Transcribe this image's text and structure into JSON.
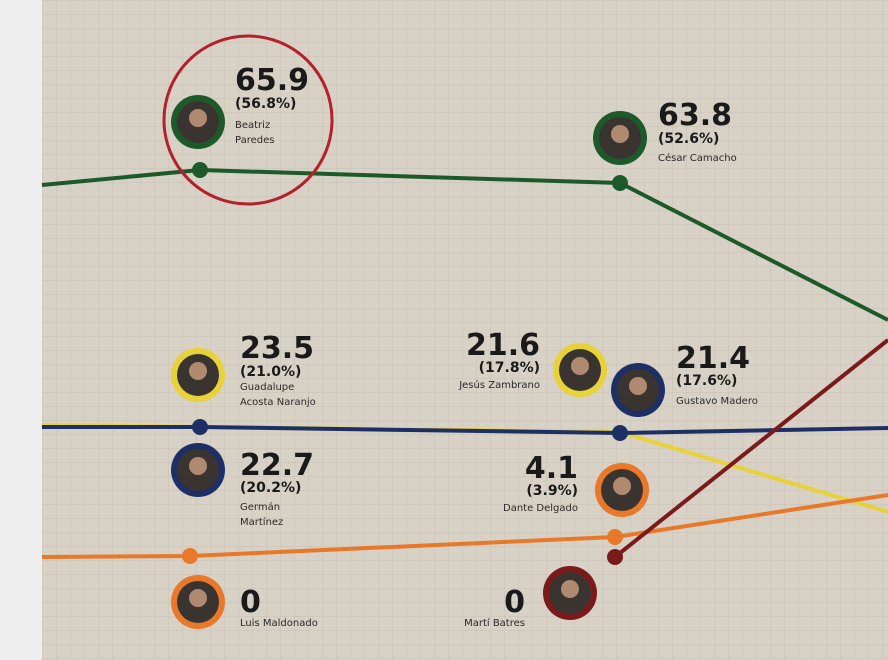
{
  "candidates": [
    {
      "value": "65.9",
      "percent": "(56.8%)",
      "name": [
        "Beatriz",
        "Paredes"
      ]
    },
    {
      "value": "63.8",
      "percent": "(52.6%)",
      "name": [
        "César Camacho"
      ]
    },
    {
      "value": "23.5",
      "percent": "(21.0%)",
      "name": [
        "Guadalupe",
        "Acosta Naranjo"
      ]
    },
    {
      "value": "21.6",
      "percent": "(17.8%)",
      "name": [
        "Jesús Zambrano"
      ]
    },
    {
      "value": "21.4",
      "percent": "(17.6%)",
      "name": [
        "Gustavo Madero"
      ]
    },
    {
      "value": "22.7",
      "percent": "(20.2%)",
      "name": [
        "Germán",
        "Martínez"
      ]
    },
    {
      "value": "4.1",
      "percent": "(3.9%)",
      "name": [
        "Dante Delgado"
      ]
    },
    {
      "value": "0",
      "name": [
        "Luis Maldonado"
      ]
    },
    {
      "value": "0",
      "name": [
        "Martí Batres"
      ]
    }
  ]
}
